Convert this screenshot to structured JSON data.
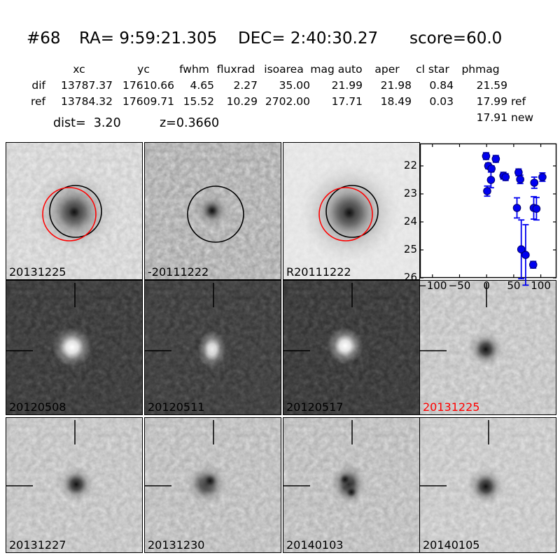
{
  "header": {
    "object_id": "#68",
    "ra": "RA= 9:59:21.305",
    "dec": "DEC= 2:40:30.27",
    "score": "score=60.0"
  },
  "photometry_table": {
    "columns": [
      "xc",
      "yc",
      "fwhm",
      "fluxrad",
      "isoarea",
      "mag auto",
      "aper",
      "cl star",
      "phmag"
    ],
    "rows": [
      {
        "label": "dif",
        "values": [
          "13787.37",
          "17610.66",
          "4.65",
          "2.27",
          "35.00",
          "21.99",
          "21.98",
          "0.84",
          "21.59"
        ],
        "suffix": ""
      },
      {
        "label": "ref",
        "values": [
          "13784.32",
          "17609.71",
          "15.52",
          "10.29",
          "2702.00",
          "17.71",
          "18.49",
          "0.03",
          "17.99"
        ],
        "suffix": "ref"
      },
      {
        "label": "",
        "values": [
          "",
          "",
          "",
          "",
          "",
          "",
          "",
          "",
          "17.91"
        ],
        "suffix": "new"
      }
    ],
    "dist": "dist=  3.20",
    "z": "z=0.3660"
  },
  "panels": [
    {
      "label": "20131225",
      "color": "#000000"
    },
    {
      "label": "-20111222",
      "color": "#000000"
    },
    {
      "label": "R20111222",
      "color": "#000000"
    },
    {
      "label": "20120508",
      "color": "#000000"
    },
    {
      "label": "20120511",
      "color": "#000000"
    },
    {
      "label": "20120517",
      "color": "#000000"
    },
    {
      "label": "20131225",
      "color": "#ff0000"
    },
    {
      "label": "20131227",
      "color": "#000000"
    },
    {
      "label": "20131230",
      "color": "#000000"
    },
    {
      "label": "20140103",
      "color": "#000000"
    },
    {
      "label": "20140105",
      "color": "#000000"
    }
  ],
  "chart_data": {
    "type": "scatter",
    "title": "",
    "xlabel": "",
    "ylabel": "",
    "legend": null,
    "grid": false,
    "y_axis_inverted_magnitudes": true,
    "xlim": [
      -123,
      129
    ],
    "ylim_top": 21.2,
    "ylim_bottom": 26,
    "xticks": [
      -100,
      -50,
      0,
      50,
      100
    ],
    "yticks": [
      22,
      23,
      24,
      25,
      26
    ],
    "marker_color": "#0000f0",
    "marker_edge_color": "#000066",
    "points": [
      {
        "x": -1,
        "y": 21.65,
        "err": 0.12
      },
      {
        "x": 17,
        "y": 21.75,
        "err": 0.12
      },
      {
        "x": 3,
        "y": 22.0,
        "err": 0.1
      },
      {
        "x": 9,
        "y": 22.1,
        "err": 0.1
      },
      {
        "x": 8,
        "y": 22.5,
        "err": 0.28
      },
      {
        "x": 1,
        "y": 22.9,
        "err": 0.18
      },
      {
        "x": 31,
        "y": 22.35,
        "err": 0.12
      },
      {
        "x": 35,
        "y": 22.4,
        "err": 0.12
      },
      {
        "x": 59,
        "y": 22.23,
        "err": 0.12
      },
      {
        "x": 62,
        "y": 22.48,
        "err": 0.15
      },
      {
        "x": 56,
        "y": 23.5,
        "err": 0.36
      },
      {
        "x": 64,
        "y": 24.98,
        "err": 1.05
      },
      {
        "x": 72,
        "y": 25.18,
        "err": 1.08
      },
      {
        "x": 87,
        "y": 23.5,
        "err": 0.4
      },
      {
        "x": 92,
        "y": 23.53,
        "err": 0.4
      },
      {
        "x": 88,
        "y": 22.6,
        "err": 0.2
      },
      {
        "x": 103,
        "y": 22.4,
        "err": 0.15
      },
      {
        "x": 86,
        "y": 25.53,
        "err": 0.12
      }
    ]
  }
}
